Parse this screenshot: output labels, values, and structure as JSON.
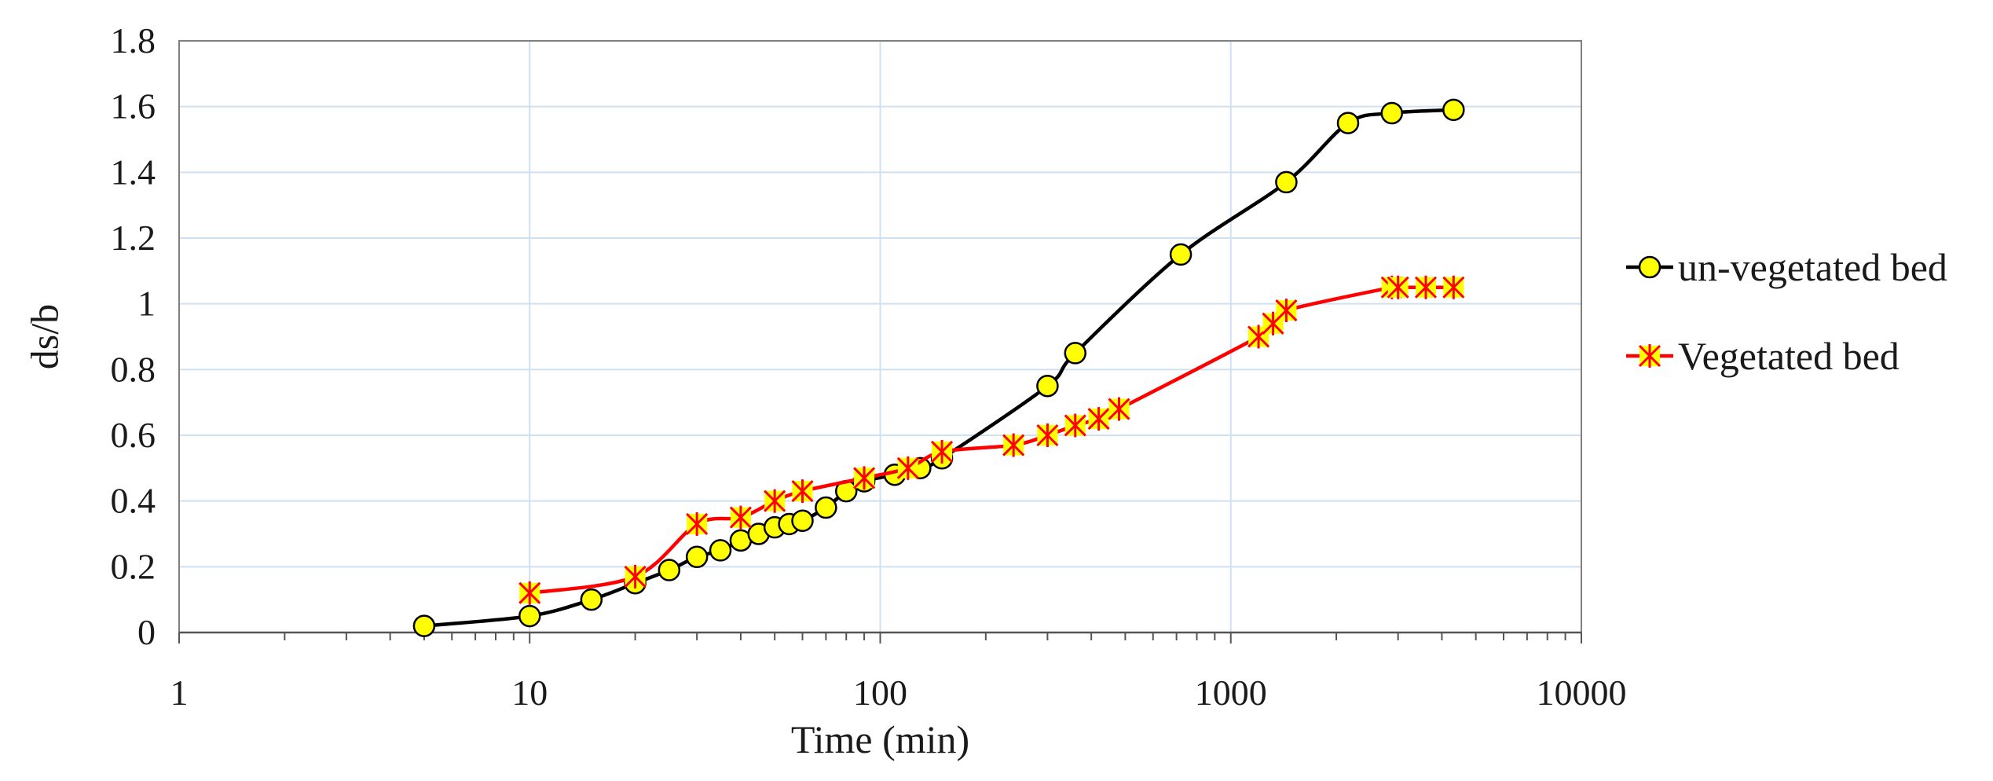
{
  "chart_data": {
    "type": "line",
    "title": "",
    "xlabel": "Time (min)",
    "ylabel": "ds/b",
    "x_scale": "log",
    "xlim": [
      1,
      10000
    ],
    "ylim": [
      0,
      1.8
    ],
    "x_ticks": [
      "1",
      "10",
      "100",
      "1000",
      "10000"
    ],
    "y_ticks": [
      "0",
      "0.2",
      "0.4",
      "0.6",
      "0.8",
      "1",
      "1.2",
      "1.4",
      "1.6",
      "1.8"
    ],
    "grid": true,
    "legend_position": "right",
    "series": [
      {
        "name": "un-vegetated bed",
        "line_color": "#000000",
        "marker": "circle",
        "marker_fill": "#ffff00",
        "marker_stroke": "#000000",
        "x": [
          5,
          10,
          15,
          20,
          25,
          30,
          35,
          40,
          45,
          50,
          55,
          60,
          70,
          80,
          90,
          110,
          130,
          150,
          300,
          360,
          720,
          1440,
          2160,
          2880,
          4320
        ],
        "y": [
          0.02,
          0.05,
          0.1,
          0.15,
          0.19,
          0.23,
          0.25,
          0.28,
          0.3,
          0.32,
          0.33,
          0.34,
          0.38,
          0.43,
          0.46,
          0.48,
          0.5,
          0.53,
          0.75,
          0.85,
          1.15,
          1.37,
          1.55,
          1.58,
          1.59
        ]
      },
      {
        "name": "Vegetated bed",
        "line_color": "#ff0000",
        "marker": "asterisk-square",
        "marker_fill": "#ffff00",
        "marker_stroke": "#ff0000",
        "x": [
          10,
          20,
          30,
          40,
          50,
          60,
          90,
          120,
          150,
          240,
          300,
          360,
          420,
          480,
          1200,
          1320,
          1440,
          2880,
          3000,
          3600,
          4320
        ],
        "y": [
          0.12,
          0.17,
          0.33,
          0.35,
          0.4,
          0.43,
          0.47,
          0.5,
          0.55,
          0.57,
          0.6,
          0.63,
          0.65,
          0.68,
          0.9,
          0.94,
          0.98,
          1.05,
          1.05,
          1.05,
          1.05
        ]
      }
    ]
  }
}
